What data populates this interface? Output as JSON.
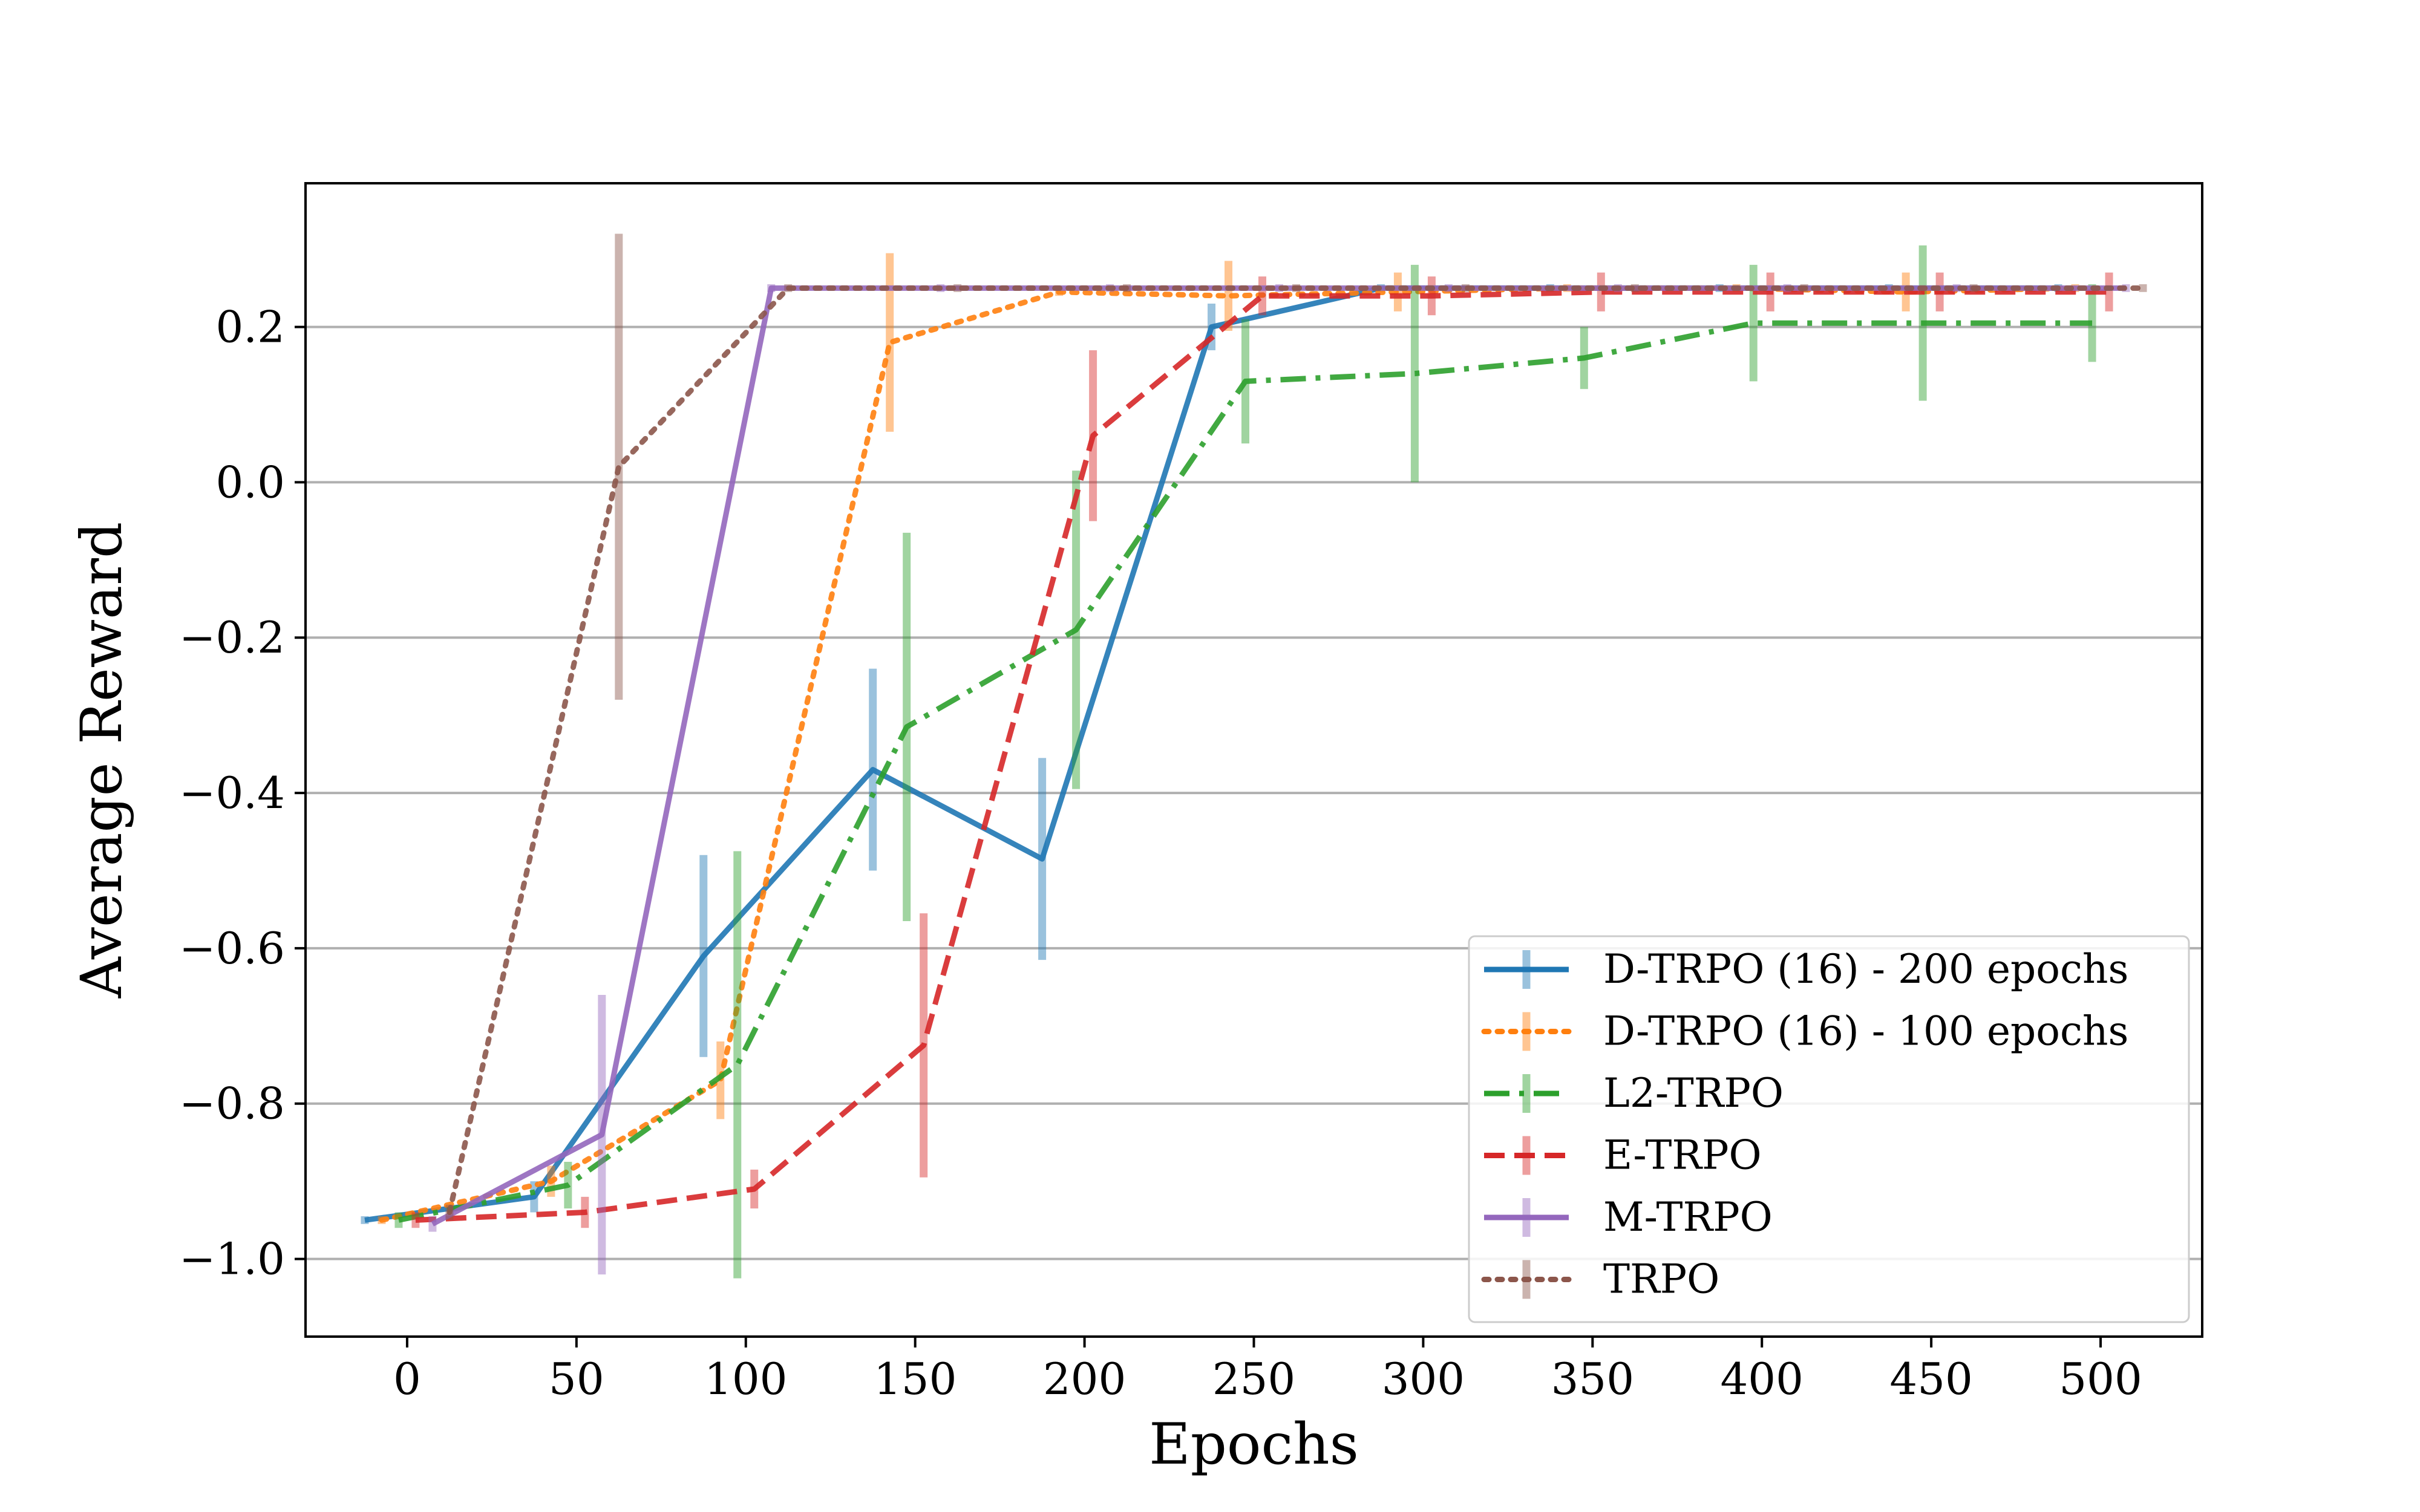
{
  "chart_data": {
    "type": "line",
    "title": "",
    "xlabel": "Epochs",
    "ylabel": "Average Reward",
    "xlim": [
      -30,
      530
    ],
    "ylim": [
      -1.1,
      0.385
    ],
    "xticks": [
      0,
      50,
      100,
      150,
      200,
      250,
      300,
      350,
      400,
      450,
      500
    ],
    "yticks": [
      -1.0,
      -0.8,
      -0.6,
      -0.4,
      -0.2,
      0.0,
      0.2
    ],
    "ytick_labels": [
      "−1.0",
      "−0.8",
      "−0.6",
      "−0.4",
      "−0.2",
      "0.0",
      "0.2"
    ],
    "grid": "horizontal",
    "legend_position": "lower-right",
    "series": [
      {
        "name": "D-TRPO (16) - 200 epochs",
        "color": "#1f77b4",
        "linestyle": "solid",
        "x": [
          0,
          50,
          100,
          150,
          200,
          250,
          300,
          350,
          400,
          450,
          500
        ],
        "y": [
          -0.95,
          -0.92,
          -0.61,
          -0.37,
          -0.485,
          0.2,
          0.25,
          0.25,
          0.25,
          0.25,
          0.25
        ],
        "err": [
          0.005,
          0.02,
          0.13,
          0.13,
          0.13,
          0.03,
          0.005,
          0.005,
          0.005,
          0.005,
          0.005
        ]
      },
      {
        "name": "D-TRPO (16) - 100 epochs",
        "color": "#ff7f0e",
        "linestyle": "dotted",
        "x": [
          0,
          50,
          100,
          150,
          200,
          250,
          300,
          350,
          400,
          450,
          500
        ],
        "y": [
          -0.95,
          -0.9,
          -0.77,
          0.18,
          0.245,
          0.24,
          0.245,
          0.25,
          0.25,
          0.245,
          0.25
        ],
        "err": [
          0.005,
          0.02,
          0.05,
          0.115,
          0.005,
          0.045,
          0.025,
          0.005,
          0.005,
          0.025,
          0.005
        ]
      },
      {
        "name": "L2-TRPO",
        "color": "#2ca02c",
        "linestyle": "dashdot",
        "x": [
          0,
          50,
          100,
          150,
          200,
          250,
          300,
          350,
          400,
          450,
          500
        ],
        "y": [
          -0.95,
          -0.905,
          -0.75,
          -0.315,
          -0.19,
          0.13,
          0.14,
          0.16,
          0.205,
          0.205,
          0.205
        ],
        "err": [
          0.01,
          0.03,
          0.275,
          0.25,
          0.205,
          0.08,
          0.14,
          0.04,
          0.075,
          0.1,
          0.05
        ]
      },
      {
        "name": "E-TRPO",
        "color": "#d62728",
        "linestyle": "dashed",
        "x": [
          0,
          50,
          100,
          150,
          200,
          250,
          300,
          350,
          400,
          450,
          500
        ],
        "y": [
          -0.95,
          -0.94,
          -0.91,
          -0.725,
          0.06,
          0.24,
          0.24,
          0.245,
          0.245,
          0.245,
          0.245
        ],
        "err": [
          0.01,
          0.02,
          0.025,
          0.17,
          0.11,
          0.025,
          0.025,
          0.025,
          0.025,
          0.025,
          0.025
        ]
      },
      {
        "name": "M-TRPO",
        "color": "#9467bd",
        "linestyle": "solid",
        "x": [
          0,
          50,
          100,
          150,
          200,
          250,
          300,
          350,
          400,
          450,
          500
        ],
        "y": [
          -0.955,
          -0.84,
          0.25,
          0.25,
          0.25,
          0.25,
          0.25,
          0.25,
          0.25,
          0.25,
          0.25
        ],
        "err": [
          0.01,
          0.18,
          0.005,
          0.005,
          0.005,
          0.005,
          0.005,
          0.005,
          0.005,
          0.005,
          0.005
        ]
      },
      {
        "name": "TRPO",
        "color": "#8c564b",
        "linestyle": "dotted",
        "x": [
          0,
          50,
          100,
          150,
          200,
          250,
          300,
          350,
          400,
          450,
          500
        ],
        "y": [
          -0.94,
          0.02,
          0.25,
          0.25,
          0.25,
          0.25,
          0.25,
          0.25,
          0.25,
          0.25,
          0.25
        ],
        "err": [
          0.01,
          0.3,
          0.005,
          0.005,
          0.005,
          0.005,
          0.005,
          0.005,
          0.005,
          0.005,
          0.005
        ]
      }
    ]
  }
}
